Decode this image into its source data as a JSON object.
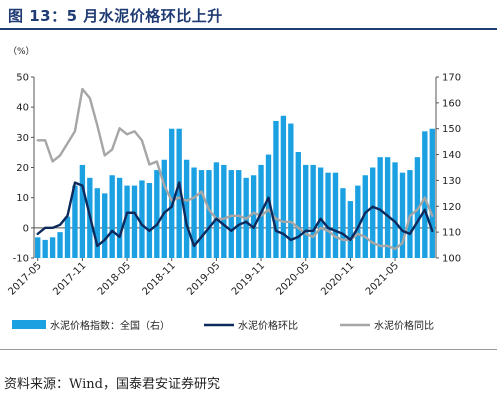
{
  "figure": {
    "title": "图 13：5 月水泥价格环比上升",
    "source": "资料来源：Wind，国泰君安证券研究"
  },
  "chart_data": {
    "type": "bar+line",
    "left_axis": {
      "unit_label": "（%）",
      "range": [
        -10,
        50
      ],
      "ticks": [
        -10,
        0,
        10,
        20,
        30,
        40,
        50
      ]
    },
    "right_axis": {
      "range": [
        100,
        170
      ],
      "ticks": [
        100,
        110,
        120,
        130,
        140,
        150,
        160,
        170
      ]
    },
    "x_tick_labels": [
      "2017-05",
      "2017-11",
      "2018-05",
      "2018-11",
      "2019-05",
      "2019-11",
      "2020-05",
      "2020-11",
      "2021-05"
    ],
    "legend": {
      "placement": "bottom",
      "items": [
        {
          "label": "水泥价格指数：全国（右）",
          "kind": "bar",
          "color": "#1ba1e2"
        },
        {
          "label": "水泥价格环比",
          "kind": "line",
          "color": "#0e2a5c"
        },
        {
          "label": "水泥价格同比",
          "kind": "line",
          "color": "#a6a6a6"
        }
      ]
    },
    "series": [
      {
        "name": "水泥价格指数：全国（右）",
        "axis": "right",
        "type": "bar",
        "color": "#1ba1e2",
        "values": [
          108,
          107,
          108,
          110,
          116,
          128,
          136,
          131,
          127,
          125,
          132,
          131,
          128,
          128,
          130,
          129,
          134,
          138,
          150,
          150,
          138,
          135,
          134,
          134,
          137,
          136,
          134,
          134,
          131,
          132,
          136,
          140,
          153,
          155,
          152,
          141,
          136,
          136,
          135,
          133,
          133,
          127,
          122,
          128,
          132,
          135,
          139,
          139,
          137,
          133,
          134,
          139,
          149,
          150
        ]
      },
      {
        "name": "水泥价格环比",
        "axis": "left",
        "type": "line",
        "color": "#0e2a5c",
        "values": [
          -2,
          0,
          0,
          1,
          4,
          15,
          14,
          4,
          -6,
          -4,
          -1,
          -3,
          5,
          5,
          1,
          -1,
          1,
          5,
          7,
          15,
          1,
          -6,
          -3,
          0,
          3,
          1,
          -1,
          1,
          2,
          0,
          5,
          10,
          -1,
          -2,
          -4,
          -3,
          -1,
          -1,
          3,
          0,
          -1,
          -2,
          -4,
          0,
          5,
          7,
          6,
          4,
          2,
          -1,
          -2,
          2,
          6,
          -1
        ]
      },
      {
        "name": "水泥价格同比",
        "axis": "left",
        "type": "line",
        "color": "#a6a6a6",
        "values": [
          29,
          29,
          22,
          24,
          28,
          32,
          46,
          43,
          34,
          24,
          26,
          33,
          31,
          32,
          29,
          21,
          22,
          14,
          9,
          10,
          9,
          10,
          12,
          6,
          3,
          3,
          4,
          4,
          3,
          5,
          4,
          6,
          3,
          2,
          2,
          0,
          -2,
          -3,
          0,
          -1,
          -3,
          -4,
          -4,
          -2,
          -3,
          -5,
          -6,
          -6,
          -7,
          -5,
          4,
          6,
          10,
          4
        ]
      }
    ]
  }
}
